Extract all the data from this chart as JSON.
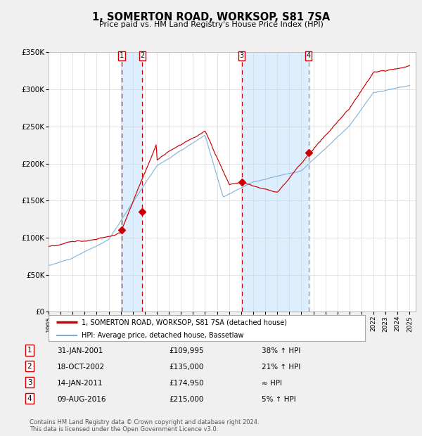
{
  "title": "1, SOMERTON ROAD, WORKSOP, S81 7SA",
  "subtitle": "Price paid vs. HM Land Registry's House Price Index (HPI)",
  "line_color_red": "#cc0000",
  "line_color_blue": "#7aaed6",
  "background_color": "#f0f0f0",
  "plot_bg": "#ffffff",
  "shade_color": "#ddeeff",
  "ylim": [
    0,
    350000
  ],
  "yticks": [
    0,
    50000,
    100000,
    150000,
    200000,
    250000,
    300000,
    350000
  ],
  "ytick_labels": [
    "£0",
    "£50K",
    "£100K",
    "£150K",
    "£200K",
    "£250K",
    "£300K",
    "£350K"
  ],
  "sales": [
    {
      "num": 1,
      "date_num": 2001.08,
      "price": 109995,
      "label": "1",
      "vline_color": "#cc0000"
    },
    {
      "num": 2,
      "date_num": 2002.8,
      "price": 135000,
      "label": "2",
      "vline_color": "#cc0000"
    },
    {
      "num": 3,
      "date_num": 2011.04,
      "price": 174950,
      "label": "3",
      "vline_color": "#cc0000"
    },
    {
      "num": 4,
      "date_num": 2016.6,
      "price": 215000,
      "label": "4",
      "vline_color": "#888888"
    }
  ],
  "table_rows": [
    {
      "num": "1",
      "date": "31-JAN-2001",
      "price": "£109,995",
      "change": "38% ↑ HPI"
    },
    {
      "num": "2",
      "date": "18-OCT-2002",
      "price": "£135,000",
      "change": "21% ↑ HPI"
    },
    {
      "num": "3",
      "date": "14-JAN-2011",
      "price": "£174,950",
      "change": "≈ HPI"
    },
    {
      "num": "4",
      "date": "09-AUG-2016",
      "price": "£215,000",
      "change": "5% ↑ HPI"
    }
  ],
  "legend_red": "1, SOMERTON ROAD, WORKSOP, S81 7SA (detached house)",
  "legend_blue": "HPI: Average price, detached house, Bassetlaw",
  "footer": "Contains HM Land Registry data © Crown copyright and database right 2024.\nThis data is licensed under the Open Government Licence v3.0.",
  "xmin": 1995.0,
  "xmax": 2025.5
}
